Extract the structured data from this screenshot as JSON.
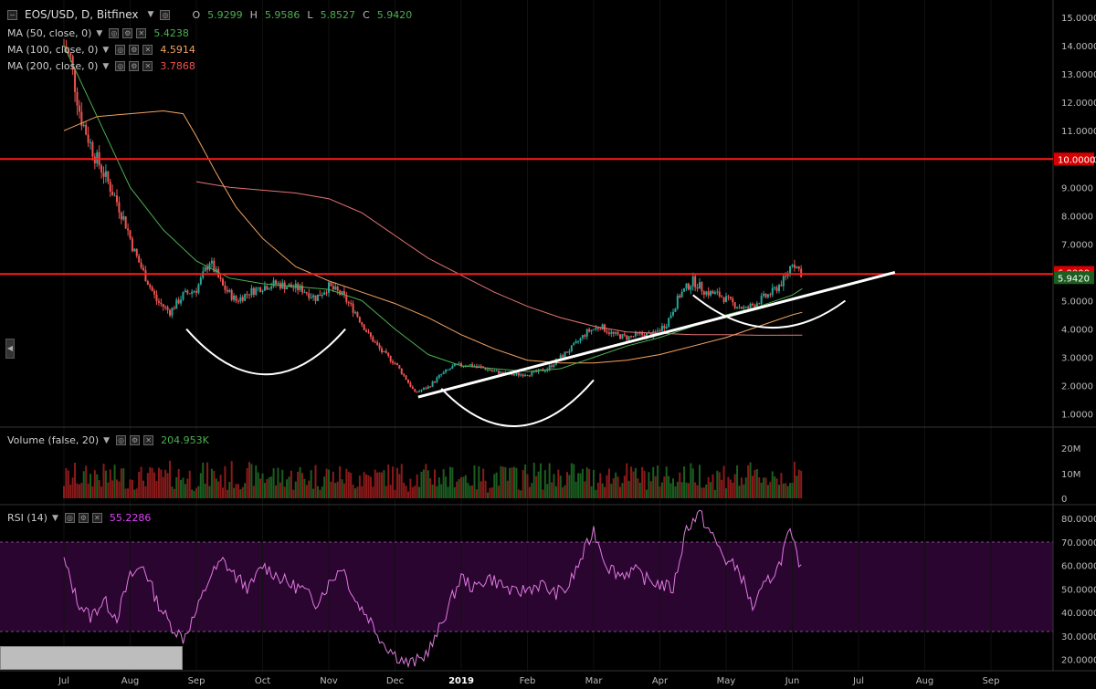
{
  "header": {
    "symbol": "EOS/USD, D, Bitfinex",
    "ohlc": [
      {
        "key": "O",
        "value": "5.9299"
      },
      {
        "key": "H",
        "value": "5.9586"
      },
      {
        "key": "L",
        "value": "5.8527"
      },
      {
        "key": "C",
        "value": "5.9420"
      }
    ]
  },
  "studies": [
    {
      "label": "MA (50, close, 0)",
      "value": "5.4238",
      "color": "#4caf50"
    },
    {
      "label": "MA (100, close, 0)",
      "value": "4.5914",
      "color": "#f4a460"
    },
    {
      "label": "MA (200, close, 0)",
      "value": "3.7868",
      "color": "#ef5350"
    }
  ],
  "volume_pane": {
    "label": "Volume (false, 20)",
    "value": "204.953K",
    "value_color": "#4caf50"
  },
  "rsi_pane": {
    "label": "RSI (14)",
    "value": "55.2286",
    "value_color": "#e040fb"
  },
  "colors": {
    "up": "#26a69a",
    "down": "#ef5350",
    "hline": "#ff1a1a",
    "rsi": "#e07ae0",
    "rsi_band": "#2a0530"
  },
  "chart_data": {
    "type": "candlestick",
    "price_axis": {
      "ticks": [
        "15.0000",
        "14.0000",
        "13.0000",
        "12.0000",
        "11.0000",
        "10.0000",
        "9.0000",
        "8.0000",
        "7.0000",
        "6.0000",
        "5.0000",
        "4.0000",
        "3.0000",
        "2.0000",
        "1.0000"
      ],
      "labels": [
        {
          "text": "10.0000",
          "value": 10.0,
          "style": "red"
        },
        {
          "text": "6.0000",
          "value": 6.0,
          "style": "red"
        },
        {
          "text": "5.9420",
          "value": 5.942,
          "style": "green"
        }
      ]
    },
    "volume_axis": {
      "ticks": [
        "20M",
        "10M",
        "0"
      ]
    },
    "rsi_axis": {
      "ticks": [
        "80.0000",
        "70.0000",
        "60.0000",
        "50.0000",
        "40.0000",
        "30.0000",
        "20.0000"
      ],
      "band": [
        30,
        70
      ]
    },
    "time_axis": [
      "Jul",
      "Aug",
      "Sep",
      "Oct",
      "Nov",
      "Dec",
      "2019",
      "Feb",
      "Mar",
      "Apr",
      "May",
      "Jun",
      "Jul",
      "Aug",
      "Sep"
    ],
    "horizontal_lines": [
      10.0,
      5.942
    ],
    "price_path": [
      [
        0,
        14.0
      ],
      [
        0.1,
        13.5
      ],
      [
        0.25,
        11.5
      ],
      [
        0.45,
        10.2
      ],
      [
        0.6,
        9.5
      ],
      [
        0.8,
        8.5
      ],
      [
        0.95,
        7.6
      ],
      [
        1.05,
        6.8
      ],
      [
        1.2,
        6.0
      ],
      [
        1.4,
        5.0
      ],
      [
        1.6,
        4.6
      ],
      [
        1.8,
        5.2
      ],
      [
        2.0,
        5.4
      ],
      [
        2.2,
        6.4
      ],
      [
        2.4,
        5.5
      ],
      [
        2.6,
        5.0
      ],
      [
        2.8,
        5.3
      ],
      [
        3.0,
        5.5
      ],
      [
        3.2,
        5.6
      ],
      [
        3.4,
        5.5
      ],
      [
        3.6,
        5.4
      ],
      [
        3.8,
        5.1
      ],
      [
        4.0,
        5.5
      ],
      [
        4.2,
        5.2
      ],
      [
        4.4,
        4.6
      ],
      [
        4.6,
        3.8
      ],
      [
        4.8,
        3.2
      ],
      [
        5.0,
        2.8
      ],
      [
        5.15,
        2.3
      ],
      [
        5.3,
        1.75
      ],
      [
        5.5,
        1.95
      ],
      [
        5.7,
        2.4
      ],
      [
        5.9,
        2.7
      ],
      [
        6.1,
        2.75
      ],
      [
        6.3,
        2.65
      ],
      [
        6.5,
        2.5
      ],
      [
        6.7,
        2.4
      ],
      [
        6.9,
        2.4
      ],
      [
        7.1,
        2.45
      ],
      [
        7.3,
        2.6
      ],
      [
        7.5,
        3.0
      ],
      [
        7.7,
        3.4
      ],
      [
        7.9,
        3.9
      ],
      [
        8.1,
        4.1
      ],
      [
        8.3,
        3.8
      ],
      [
        8.5,
        3.7
      ],
      [
        8.7,
        3.8
      ],
      [
        8.9,
        3.8
      ],
      [
        9.1,
        4.2
      ],
      [
        9.3,
        5.2
      ],
      [
        9.5,
        5.7
      ],
      [
        9.7,
        5.3
      ],
      [
        9.9,
        5.2
      ],
      [
        10.1,
        4.9
      ],
      [
        10.3,
        4.7
      ],
      [
        10.5,
        5.0
      ],
      [
        10.7,
        5.3
      ],
      [
        10.9,
        5.8
      ],
      [
        11.0,
        6.4
      ],
      [
        11.15,
        5.942
      ]
    ],
    "ma50_path": [
      [
        0,
        14.0
      ],
      [
        0.5,
        11.5
      ],
      [
        1.0,
        9.0
      ],
      [
        1.5,
        7.5
      ],
      [
        2.0,
        6.4
      ],
      [
        2.5,
        5.8
      ],
      [
        3.0,
        5.6
      ],
      [
        3.5,
        5.5
      ],
      [
        4.0,
        5.4
      ],
      [
        4.5,
        5.0
      ],
      [
        5.0,
        4.0
      ],
      [
        5.5,
        3.1
      ],
      [
        6.0,
        2.7
      ],
      [
        6.5,
        2.6
      ],
      [
        7.0,
        2.5
      ],
      [
        7.5,
        2.6
      ],
      [
        8.0,
        3.0
      ],
      [
        8.5,
        3.4
      ],
      [
        9.0,
        3.7
      ],
      [
        9.5,
        4.1
      ],
      [
        10.0,
        4.5
      ],
      [
        10.5,
        4.8
      ],
      [
        11.0,
        5.2
      ],
      [
        11.15,
        5.4238
      ]
    ],
    "ma100_path": [
      [
        0,
        11.0
      ],
      [
        0.5,
        11.5
      ],
      [
        1.0,
        11.6
      ],
      [
        1.5,
        11.7
      ],
      [
        1.8,
        11.6
      ],
      [
        2.0,
        10.8
      ],
      [
        2.3,
        9.5
      ],
      [
        2.6,
        8.3
      ],
      [
        3.0,
        7.2
      ],
      [
        3.5,
        6.2
      ],
      [
        4.0,
        5.7
      ],
      [
        4.5,
        5.3
      ],
      [
        5.0,
        4.9
      ],
      [
        5.5,
        4.4
      ],
      [
        6.0,
        3.8
      ],
      [
        6.5,
        3.3
      ],
      [
        7.0,
        2.9
      ],
      [
        7.5,
        2.8
      ],
      [
        8.0,
        2.8
      ],
      [
        8.5,
        2.9
      ],
      [
        9.0,
        3.1
      ],
      [
        9.5,
        3.4
      ],
      [
        10.0,
        3.7
      ],
      [
        10.5,
        4.1
      ],
      [
        11.0,
        4.5
      ],
      [
        11.15,
        4.5914
      ]
    ],
    "ma200_path": [
      [
        2.0,
        9.2
      ],
      [
        2.5,
        9.0
      ],
      [
        3.0,
        8.9
      ],
      [
        3.5,
        8.8
      ],
      [
        4.0,
        8.6
      ],
      [
        4.5,
        8.1
      ],
      [
        5.0,
        7.3
      ],
      [
        5.5,
        6.5
      ],
      [
        6.0,
        5.9
      ],
      [
        6.5,
        5.3
      ],
      [
        7.0,
        4.8
      ],
      [
        7.5,
        4.4
      ],
      [
        8.0,
        4.1
      ],
      [
        8.5,
        3.9
      ],
      [
        9.0,
        3.85
      ],
      [
        9.5,
        3.8
      ],
      [
        10.0,
        3.8
      ],
      [
        10.5,
        3.78
      ],
      [
        11.15,
        3.7868
      ]
    ],
    "trendline": [
      [
        5.35,
        1.6
      ],
      [
        12.55,
        6.0
      ]
    ],
    "arcs": [
      {
        "from": [
          1.85,
          4.0
        ],
        "to": [
          4.25,
          4.0
        ],
        "depth": 3.2
      },
      {
        "from": [
          5.7,
          1.9
        ],
        "to": [
          8.0,
          2.2
        ],
        "depth": 2.8
      },
      {
        "from": [
          9.5,
          5.2
        ],
        "to": [
          11.8,
          5.0
        ],
        "depth": 2.0
      }
    ],
    "rsi_path": [
      [
        0,
        62
      ],
      [
        0.2,
        45
      ],
      [
        0.4,
        38
      ],
      [
        0.6,
        45
      ],
      [
        0.8,
        38
      ],
      [
        1.0,
        55
      ],
      [
        1.2,
        60
      ],
      [
        1.4,
        45
      ],
      [
        1.6,
        35
      ],
      [
        1.8,
        29
      ],
      [
        2.0,
        40
      ],
      [
        2.2,
        55
      ],
      [
        2.4,
        62
      ],
      [
        2.6,
        55
      ],
      [
        2.8,
        50
      ],
      [
        3.0,
        60
      ],
      [
        3.2,
        56
      ],
      [
        3.4,
        52
      ],
      [
        3.6,
        50
      ],
      [
        3.8,
        44
      ],
      [
        4.0,
        52
      ],
      [
        4.2,
        60
      ],
      [
        4.4,
        45
      ],
      [
        4.6,
        38
      ],
      [
        4.8,
        28
      ],
      [
        5.0,
        22
      ],
      [
        5.2,
        18
      ],
      [
        5.4,
        20
      ],
      [
        5.6,
        28
      ],
      [
        5.8,
        42
      ],
      [
        6.0,
        55
      ],
      [
        6.2,
        50
      ],
      [
        6.4,
        55
      ],
      [
        6.6,
        52
      ],
      [
        6.8,
        48
      ],
      [
        7.0,
        50
      ],
      [
        7.2,
        52
      ],
      [
        7.4,
        48
      ],
      [
        7.6,
        50
      ],
      [
        7.8,
        62
      ],
      [
        8.0,
        75
      ],
      [
        8.2,
        60
      ],
      [
        8.4,
        56
      ],
      [
        8.6,
        58
      ],
      [
        8.8,
        54
      ],
      [
        9.0,
        52
      ],
      [
        9.2,
        50
      ],
      [
        9.4,
        76
      ],
      [
        9.6,
        82
      ],
      [
        9.8,
        72
      ],
      [
        10.0,
        62
      ],
      [
        10.2,
        58
      ],
      [
        10.4,
        42
      ],
      [
        10.6,
        52
      ],
      [
        10.8,
        60
      ],
      [
        10.95,
        74
      ],
      [
        11.1,
        62
      ],
      [
        11.15,
        55.2286
      ]
    ]
  }
}
